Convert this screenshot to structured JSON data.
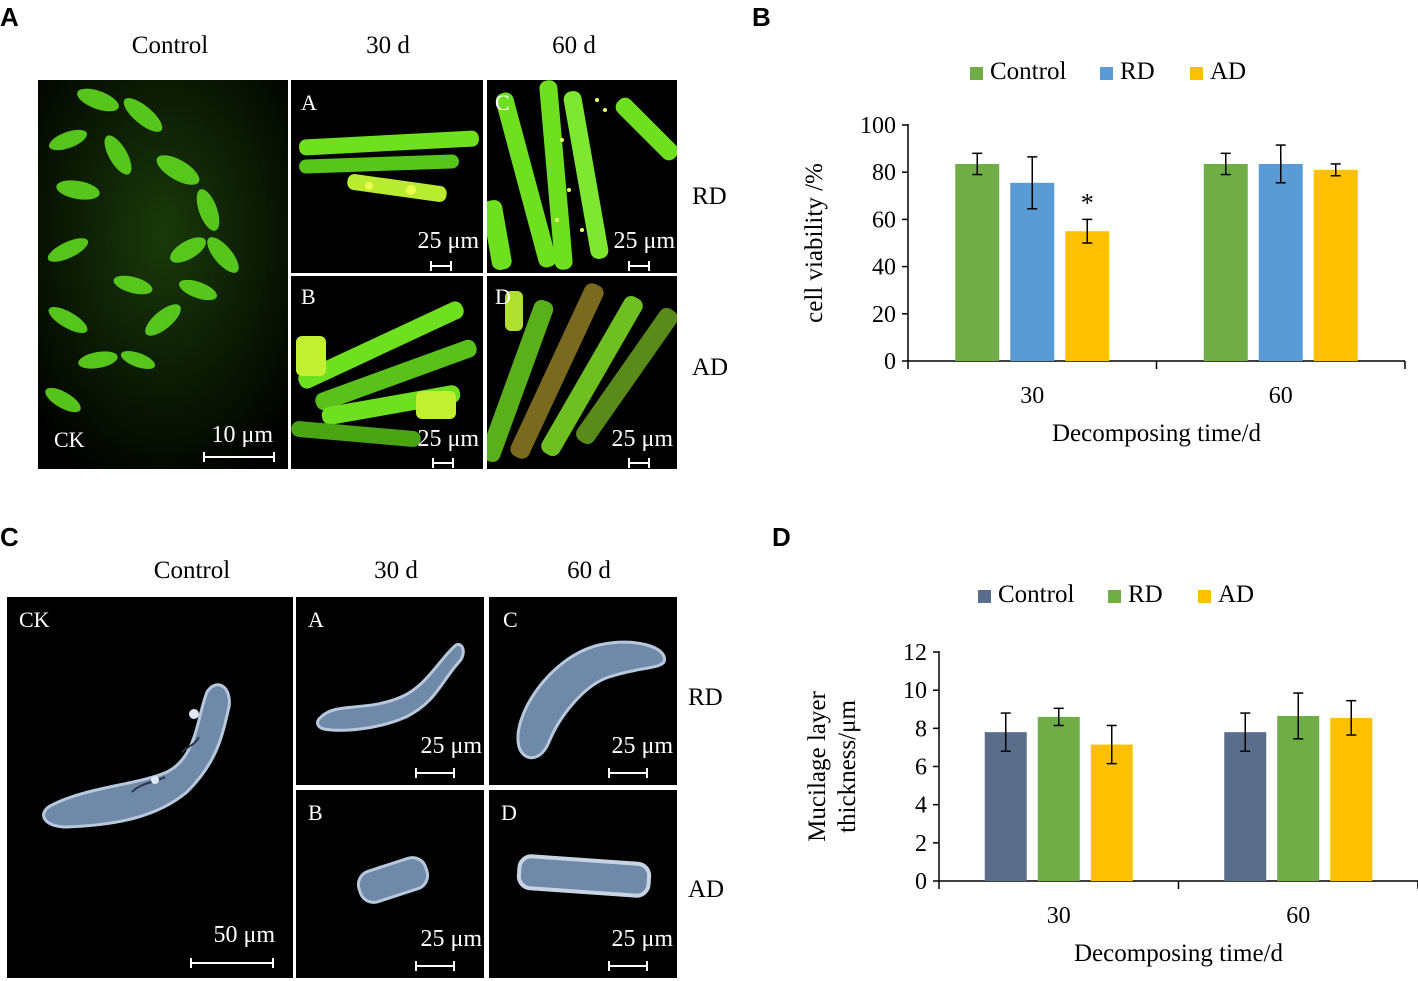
{
  "panel_letters": [
    "A",
    "B",
    "C",
    "D"
  ],
  "colors": {
    "control": "#70ad47",
    "rd": "#5b9bd5",
    "ad": "#ffc000",
    "control_d": "#5a6e8c"
  },
  "panelA": {
    "headers": {
      "control": "Control",
      "d30": "30 d",
      "d60": "60 d"
    },
    "rows": {
      "rd": "RD",
      "ad": "AD"
    },
    "images": {
      "ck": {
        "label": "CK",
        "scale": "10 μm"
      },
      "a": {
        "label": "A",
        "scale": "25 μm"
      },
      "b": {
        "label": "B",
        "scale": "25 μm"
      },
      "c": {
        "label": "C",
        "scale": "25 μm"
      },
      "d": {
        "label": "D",
        "scale": "25 μm"
      }
    }
  },
  "panelC": {
    "headers": {
      "control": "Control",
      "d30": "30 d",
      "d60": "60 d"
    },
    "rows": {
      "rd": "RD",
      "ad": "AD"
    },
    "images": {
      "ck": {
        "label": "CK",
        "scale": "50 μm"
      },
      "a": {
        "label": "A",
        "scale": "25 μm"
      },
      "b": {
        "label": "B",
        "scale": "25 μm"
      },
      "c": {
        "label": "C",
        "scale": "25 μm"
      },
      "d": {
        "label": "D",
        "scale": "25 μm"
      }
    }
  },
  "chart_data": [
    {
      "panel": "B",
      "type": "bar",
      "categories": [
        "30",
        "60"
      ],
      "series": [
        {
          "name": "Control",
          "color": "#70ad47",
          "values": [
            83.5,
            83.5
          ],
          "errors": [
            4.5,
            4.5
          ]
        },
        {
          "name": "RD",
          "color": "#5b9bd5",
          "values": [
            75.5,
            83.5
          ],
          "errors": [
            11,
            8
          ]
        },
        {
          "name": "AD",
          "color": "#ffc000",
          "values": [
            55,
            81
          ],
          "errors": [
            5,
            2.5
          ]
        }
      ],
      "annotations": [
        {
          "series": "AD",
          "category": "30",
          "text": "*"
        }
      ],
      "xlabel": "Decomposing time/d",
      "ylabel": "cell viability /%",
      "ylim": [
        0,
        100
      ],
      "yticks": [
        0,
        20,
        40,
        60,
        80,
        100
      ],
      "grid": false,
      "legend": "top"
    },
    {
      "panel": "D",
      "type": "bar",
      "categories": [
        "30",
        "60"
      ],
      "series": [
        {
          "name": "Control",
          "color": "#5a6e8c",
          "values": [
            7.8,
            7.8
          ],
          "errors": [
            1.0,
            1.0
          ]
        },
        {
          "name": "RD",
          "color": "#70ad47",
          "values": [
            8.6,
            8.65
          ],
          "errors": [
            0.45,
            1.2
          ]
        },
        {
          "name": "AD",
          "color": "#ffc000",
          "values": [
            7.15,
            8.55
          ],
          "errors": [
            1.0,
            0.9
          ]
        }
      ],
      "xlabel": "Decomposing  time/d",
      "ylabel_lines": [
        "Mucilage layer",
        "thickness/μm"
      ],
      "ylim": [
        0,
        12
      ],
      "yticks": [
        0,
        2,
        4,
        6,
        8,
        10,
        12
      ],
      "grid": false,
      "legend": "top"
    }
  ]
}
